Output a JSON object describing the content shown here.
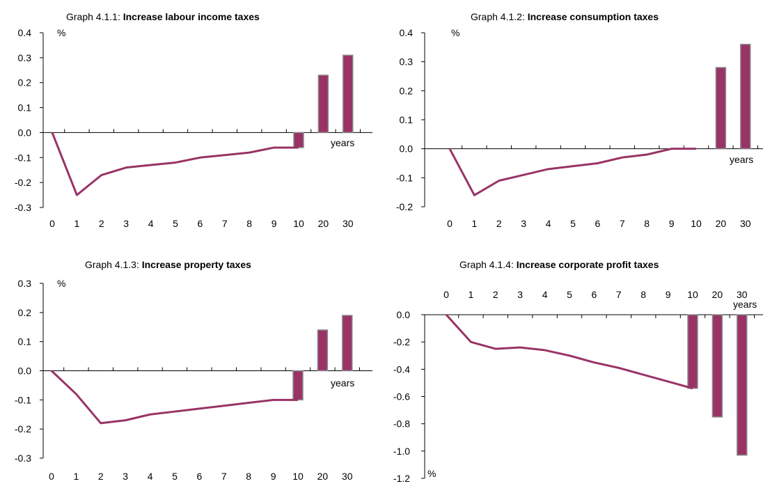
{
  "chart_data": [
    {
      "type": "line+bar",
      "title_prefix": "Graph 4.1.1:",
      "title_bold": "Increase labour income taxes",
      "unit_label": "%",
      "xlabel": "years",
      "x_categories": [
        "0",
        "1",
        "2",
        "3",
        "4",
        "5",
        "6",
        "7",
        "8",
        "9",
        "10",
        "20",
        "30"
      ],
      "y_ticks": [
        "0.4",
        "0.3",
        "0.2",
        "0.1",
        "0.0",
        "-0.1",
        "-0.2",
        "-0.3"
      ],
      "ylim": [
        -0.3,
        0.4
      ],
      "line": {
        "x": [
          0,
          1,
          2,
          3,
          4,
          5,
          6,
          7,
          8,
          9,
          10
        ],
        "values": [
          0,
          -0.25,
          -0.17,
          -0.14,
          -0.13,
          -0.12,
          -0.1,
          -0.09,
          -0.08,
          -0.06,
          -0.06
        ]
      },
      "bars": {
        "x": [
          10,
          20,
          30
        ],
        "values": [
          -0.06,
          0.23,
          0.31
        ]
      },
      "x_axis_position": "top-of-plot-below-zero",
      "color": "#993366"
    },
    {
      "type": "line+bar",
      "title_prefix": "Graph 4.1.2:",
      "title_bold": "Increase consumption taxes",
      "unit_label": "%",
      "xlabel": "years",
      "x_categories": [
        "0",
        "1",
        "2",
        "3",
        "4",
        "5",
        "6",
        "7",
        "8",
        "9",
        "10",
        "20",
        "30"
      ],
      "y_ticks": [
        "0.4",
        "0.3",
        "0.2",
        "0.1",
        "0.0",
        "-0.1",
        "-0.2"
      ],
      "ylim": [
        -0.2,
        0.4
      ],
      "line": {
        "x": [
          0,
          1,
          2,
          3,
          4,
          5,
          6,
          7,
          8,
          9,
          10
        ],
        "values": [
          0,
          -0.16,
          -0.11,
          -0.09,
          -0.07,
          -0.06,
          -0.05,
          -0.03,
          -0.02,
          0,
          0
        ]
      },
      "bars": {
        "x": [
          20,
          30
        ],
        "values": [
          0.28,
          0.36
        ]
      },
      "color": "#993366"
    },
    {
      "type": "line+bar",
      "title_prefix": "Graph 4.1.3:",
      "title_bold": "Increase property taxes",
      "unit_label": "%",
      "xlabel": "years",
      "x_categories": [
        "0",
        "1",
        "2",
        "3",
        "4",
        "5",
        "6",
        "7",
        "8",
        "9",
        "10",
        "20",
        "30"
      ],
      "y_ticks": [
        "0.3",
        "0.2",
        "0.1",
        "0.0",
        "-0.1",
        "-0.2",
        "-0.3"
      ],
      "ylim": [
        -0.3,
        0.3
      ],
      "line": {
        "x": [
          0,
          1,
          2,
          3,
          4,
          5,
          6,
          7,
          8,
          9,
          10
        ],
        "values": [
          0,
          -0.08,
          -0.18,
          -0.17,
          -0.15,
          -0.14,
          -0.13,
          -0.12,
          -0.11,
          -0.1,
          -0.1
        ]
      },
      "bars": {
        "x": [
          10,
          20,
          30
        ],
        "values": [
          -0.1,
          0.14,
          0.19
        ]
      },
      "color": "#993366"
    },
    {
      "type": "line+bar",
      "title_prefix": "Graph 4.1.4:",
      "title_bold": "Increase corporate profit taxes",
      "unit_label": "%",
      "xlabel": "years",
      "x_categories": [
        "0",
        "1",
        "2",
        "3",
        "4",
        "5",
        "6",
        "7",
        "8",
        "9",
        "10",
        "20",
        "30"
      ],
      "y_ticks": [
        "0.0",
        "-0.2",
        "-0.4",
        "-0.6",
        "-0.8",
        "-1.0",
        "-1.2"
      ],
      "ylim": [
        -1.2,
        0.0
      ],
      "line": {
        "x": [
          0,
          1,
          2,
          3,
          4,
          5,
          6,
          7,
          8,
          9,
          10
        ],
        "values": [
          0,
          -0.2,
          -0.25,
          -0.24,
          -0.26,
          -0.3,
          -0.35,
          -0.39,
          -0.44,
          -0.49,
          -0.54
        ]
      },
      "bars": {
        "x": [
          10,
          20,
          30
        ],
        "values": [
          -0.54,
          -0.75,
          -1.03
        ]
      },
      "color": "#993366"
    }
  ]
}
